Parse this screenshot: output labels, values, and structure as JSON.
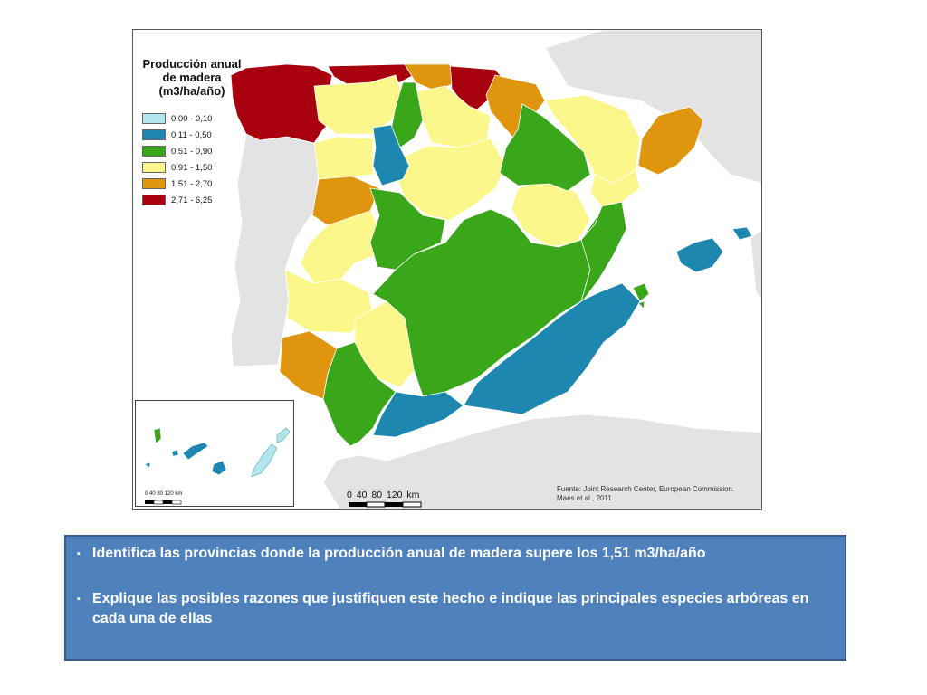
{
  "map": {
    "legend": {
      "title": "Producción anual de madera (m3/ha/año)",
      "classes": [
        {
          "label": "0,00 - 0,10",
          "color": "#b3e5ee"
        },
        {
          "label": "0,11 - 0,50",
          "color": "#1d87b0"
        },
        {
          "label": "0,51 - 0,90",
          "color": "#3aa61a"
        },
        {
          "label": "0,91 - 1,50",
          "color": "#fbf78a"
        },
        {
          "label": "1,51 - 2,70",
          "color": "#e0950f"
        },
        {
          "label": "2,71 - 6,25",
          "color": "#a8000f"
        }
      ]
    },
    "scale_label": "0  40  80  120 km",
    "inset_scale_label": "0  40  80  120 km",
    "source": {
      "line1": "Fuente: Joint Research Center, European Commission.",
      "line2": "Maes et al., 2011"
    }
  },
  "questions": [
    {
      "bullet": "▪",
      "text": "Identifica las provincias donde la producción anual de madera supere los 1,51 m3/ha/año"
    },
    {
      "bullet": "▪",
      "text": "Explique las posibles razones que justifiquen este hecho e indique las principales especies arbóreas en cada una de ellas"
    }
  ]
}
